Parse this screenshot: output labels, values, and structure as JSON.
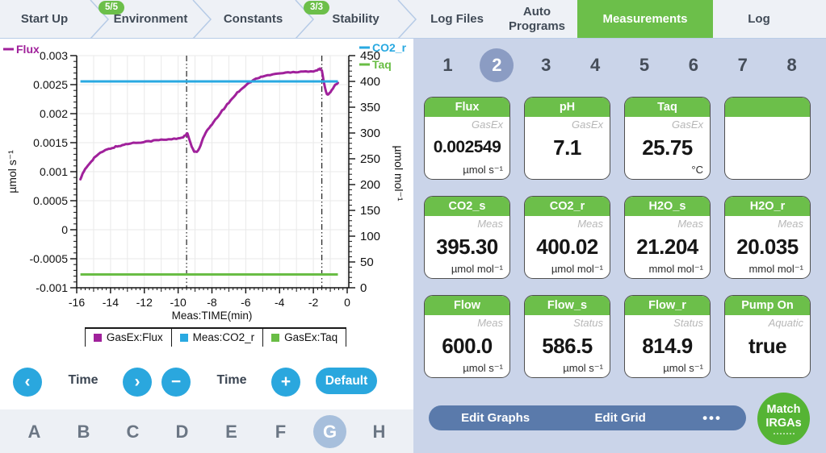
{
  "nav": {
    "tabs": [
      {
        "label": "Start Up"
      },
      {
        "label": "Environment",
        "badge": "5/5"
      },
      {
        "label": "Constants"
      },
      {
        "label": "Stability",
        "badge": "3/3"
      },
      {
        "label": "Log Files"
      },
      {
        "label": "Auto Programs"
      },
      {
        "label": "Measurements",
        "active": true
      },
      {
        "label": "Log"
      }
    ]
  },
  "chart_data": {
    "type": "line",
    "xlabel": "Meas:TIME(min)",
    "ylabel_left": "µmol s⁻¹",
    "ylabel_right": "µmol mol⁻¹",
    "xlim": [
      -16,
      0
    ],
    "ylim_left": [
      -0.001,
      0.003
    ],
    "ylim_right": [
      0,
      450
    ],
    "x_major_step": 2,
    "x_mid_step": 1,
    "x_minor_step": 0.25,
    "left_major_step": 0.0005,
    "left_minor_step": 0.0001,
    "right_major_step": 50,
    "right_minor_step": 10,
    "grid": true,
    "event_lines_x": [
      -9.5,
      -1.5
    ],
    "corner_legend_left": {
      "label": "Flux",
      "color": "#a0219b"
    },
    "corner_legend_right": [
      {
        "label": "CO2_r",
        "color": "#29a9e1"
      },
      {
        "label": "Taq",
        "color": "#69bd45"
      }
    ],
    "series": [
      {
        "name": "GasEx:Flux",
        "axis": "left",
        "color": "#a0219b",
        "points": [
          [
            -15.78,
            0.00088
          ],
          [
            -15.65,
            0.00096
          ],
          [
            -15.5,
            0.00104
          ],
          [
            -15.35,
            0.0011
          ],
          [
            -15.2,
            0.00116
          ],
          [
            -15.05,
            0.00121
          ],
          [
            -14.9,
            0.00126
          ],
          [
            -14.7,
            0.0013
          ],
          [
            -14.5,
            0.00134
          ],
          [
            -14.3,
            0.00137
          ],
          [
            -14.1,
            0.00139
          ],
          [
            -13.9,
            0.00141
          ],
          [
            -13.7,
            0.00143
          ],
          [
            -13.5,
            0.00144
          ],
          [
            -13.3,
            0.00146
          ],
          [
            -13.1,
            0.00147
          ],
          [
            -12.8,
            0.00149
          ],
          [
            -12.5,
            0.0015
          ],
          [
            -12.2,
            0.00151
          ],
          [
            -11.9,
            0.00152
          ],
          [
            -11.6,
            0.00153
          ],
          [
            -11.3,
            0.00154
          ],
          [
            -11,
            0.00155
          ],
          [
            -10.7,
            0.00155
          ],
          [
            -10.4,
            0.00156
          ],
          [
            -10.1,
            0.00157
          ],
          [
            -9.9,
            0.00158
          ],
          [
            -9.7,
            0.0016
          ],
          [
            -9.55,
            0.00163
          ],
          [
            -9.45,
            0.00166
          ],
          [
            -9.35,
            0.00156
          ],
          [
            -9.2,
            0.00143
          ],
          [
            -9.05,
            0.00135
          ],
          [
            -8.9,
            0.00133
          ],
          [
            -8.75,
            0.0014
          ],
          [
            -8.6,
            0.00152
          ],
          [
            -8.45,
            0.00163
          ],
          [
            -8.3,
            0.0017
          ],
          [
            -8.15,
            0.00176
          ],
          [
            -8,
            0.00181
          ],
          [
            -7.8,
            0.00189
          ],
          [
            -7.6,
            0.00197
          ],
          [
            -7.4,
            0.00205
          ],
          [
            -7.2,
            0.00212
          ],
          [
            -7,
            0.00219
          ],
          [
            -6.8,
            0.00226
          ],
          [
            -6.6,
            0.00233
          ],
          [
            -6.4,
            0.00239
          ],
          [
            -6.2,
            0.00244
          ],
          [
            -6,
            0.00249
          ],
          [
            -5.8,
            0.00253
          ],
          [
            -5.6,
            0.00257
          ],
          [
            -5.4,
            0.0026
          ],
          [
            -5.2,
            0.00262
          ],
          [
            -5,
            0.00264
          ],
          [
            -4.7,
            0.00266
          ],
          [
            -4.4,
            0.00268
          ],
          [
            -4.1,
            0.00269
          ],
          [
            -3.8,
            0.0027
          ],
          [
            -3.5,
            0.00271
          ],
          [
            -3.2,
            0.00272
          ],
          [
            -2.9,
            0.00272
          ],
          [
            -2.6,
            0.00273
          ],
          [
            -2.3,
            0.00273
          ],
          [
            -2,
            0.00273
          ],
          [
            -1.85,
            0.00274
          ],
          [
            -1.7,
            0.00276
          ],
          [
            -1.6,
            0.00277
          ],
          [
            -1.5,
            0.00274
          ],
          [
            -1.4,
            0.00258
          ],
          [
            -1.3,
            0.00243
          ],
          [
            -1.2,
            0.00234
          ],
          [
            -1.1,
            0.00233
          ],
          [
            -1,
            0.00237
          ],
          [
            -0.85,
            0.00243
          ],
          [
            -0.7,
            0.00249
          ],
          [
            -0.55,
            0.00253
          ]
        ]
      },
      {
        "name": "Meas:CO2_r",
        "axis": "right",
        "color": "#29a9e1",
        "constant_value": 400.02,
        "x_range": [
          -15.78,
          -0.55
        ]
      },
      {
        "name": "GasEx:Taq",
        "axis": "right",
        "color": "#69bd45",
        "constant_value": 25.75,
        "x_range": [
          -15.78,
          -0.55
        ]
      }
    ]
  },
  "legend_items": [
    {
      "label": "GasEx:Flux",
      "color": "#a0219b"
    },
    {
      "label": "Meas:CO2_r",
      "color": "#29a9e1"
    },
    {
      "label": "GasEx:Taq",
      "color": "#69bd45"
    }
  ],
  "controls": {
    "prev_icon": "‹",
    "next_icon": "›",
    "minus_icon": "−",
    "plus_icon": "+",
    "pan_label": "Time",
    "zoom_label": "Time",
    "default_label": "Default"
  },
  "letter_tabs": {
    "items": [
      "A",
      "B",
      "C",
      "D",
      "E",
      "F",
      "G",
      "H"
    ],
    "active": "G"
  },
  "pages": {
    "items": [
      "1",
      "2",
      "3",
      "4",
      "5",
      "6",
      "7",
      "8"
    ],
    "active": "2"
  },
  "cards": [
    {
      "title": "Flux",
      "source": "GasEx",
      "value": "0.002549",
      "unit": "µmol s⁻¹"
    },
    {
      "title": "pH",
      "source": "GasEx",
      "value": "7.1",
      "unit": ""
    },
    {
      "title": "Taq",
      "source": "GasEx",
      "value": "25.75",
      "unit": "°C"
    },
    {
      "title": "",
      "source": "",
      "value": "",
      "unit": ""
    },
    {
      "title": "CO2_s",
      "source": "Meas",
      "value": "395.30",
      "unit": "µmol mol⁻¹"
    },
    {
      "title": "CO2_r",
      "source": "Meas",
      "value": "400.02",
      "unit": "µmol mol⁻¹"
    },
    {
      "title": "H2O_s",
      "source": "Meas",
      "value": "21.204",
      "unit": "mmol mol⁻¹"
    },
    {
      "title": "H2O_r",
      "source": "Meas",
      "value": "20.035",
      "unit": "mmol mol⁻¹"
    },
    {
      "title": "Flow",
      "source": "Meas",
      "value": "600.0",
      "unit": "µmol s⁻¹"
    },
    {
      "title": "Flow_s",
      "source": "Status",
      "value": "586.5",
      "unit": "µmol s⁻¹"
    },
    {
      "title": "Flow_r",
      "source": "Status",
      "value": "814.9",
      "unit": "µmol s⁻¹"
    },
    {
      "title": "Pump On",
      "source": "Aquatic",
      "value": "true",
      "unit": ""
    }
  ],
  "footer": {
    "edit_graphs": "Edit Graphs",
    "edit_grid": "Edit Grid",
    "more": "•••",
    "match_line1": "Match",
    "match_line2": "IRGAs"
  },
  "colors": {
    "accent_green": "#6cbf4a",
    "control_blue": "#2aa7de",
    "panel_bg": "#cad4e9",
    "bar_steel_blue": "#5a7aab",
    "match_green": "#55b434",
    "page_active": "#8b9cc3",
    "tab_active": "#a7bfdc",
    "flux_purple": "#a0219b",
    "co2_blue": "#29a9e1",
    "taq_green": "#69bd45"
  }
}
